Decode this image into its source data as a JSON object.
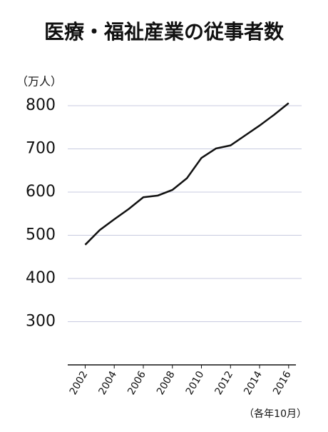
{
  "chart_data": {
    "type": "line",
    "title": "医療・福祉産業の従事者数",
    "y_label": "（万人）",
    "note": "（各年10月）",
    "x": [
      2002,
      2003,
      2004,
      2005,
      2006,
      2007,
      2008,
      2009,
      2010,
      2011,
      2012,
      2013,
      2014,
      2015,
      2016
    ],
    "series": [
      {
        "color": "#111111",
        "values": [
          478,
          512,
          537,
          561,
          588,
          592,
          605,
          632,
          679,
          701,
          708,
          731,
          754,
          779,
          806
        ]
      }
    ],
    "xlim": [
      2000.8,
      2016.5
    ],
    "xticks": [
      2002,
      2004,
      2006,
      2008,
      2010,
      2012,
      2014,
      2016
    ],
    "ylim": [
      200,
      800
    ],
    "yticks": [
      300,
      400,
      500,
      600,
      700,
      800
    ],
    "grid": true
  }
}
